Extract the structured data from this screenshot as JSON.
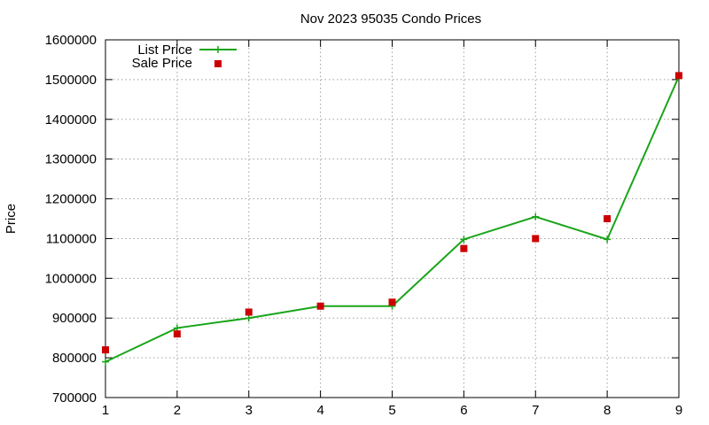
{
  "chart_data": {
    "type": "line",
    "title": "Nov 2023 95035 Condo Prices",
    "xlabel": "",
    "ylabel": "Price",
    "xlim": [
      1,
      9
    ],
    "ylim": [
      700000,
      1600000
    ],
    "x_ticks": [
      1,
      2,
      3,
      4,
      5,
      6,
      7,
      8,
      9
    ],
    "y_ticks": [
      700000,
      800000,
      900000,
      1000000,
      1100000,
      1200000,
      1300000,
      1400000,
      1500000,
      1600000
    ],
    "grid": true,
    "legend_position": "top-left",
    "x": [
      1,
      2,
      3,
      4,
      5,
      6,
      7,
      8,
      9
    ],
    "series": [
      {
        "name": "List Price",
        "style": "line+points",
        "color": "#1aa51a",
        "values": [
          790000,
          875000,
          900000,
          930000,
          930000,
          1098000,
          1155000,
          1098000,
          1508000
        ]
      },
      {
        "name": "Sale Price",
        "style": "points",
        "color": "#cc0000",
        "values": [
          820000,
          860000,
          915000,
          930000,
          940000,
          1075000,
          1100000,
          1150000,
          1510000
        ]
      }
    ]
  }
}
